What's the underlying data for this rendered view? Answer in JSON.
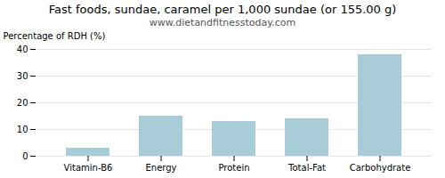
{
  "chart_data": {
    "type": "bar",
    "title": "Fast foods, sundae, caramel per 1,000 sundae (or 155.00 g)",
    "subtitle": "www.dietandfitnesstoday.com",
    "categories": [
      "Vitamin-B6",
      "Energy",
      "Protein",
      "Total-Fat",
      "Carbohydrate"
    ],
    "values": [
      3.0,
      15.0,
      13.0,
      14.0,
      38.0
    ],
    "color": "#a8cdd8",
    "ylabel": "Percentage of RDH (%)",
    "ylim": [
      0,
      40
    ],
    "yticks": [
      0,
      10,
      20,
      30,
      40
    ],
    "grid": true
  }
}
